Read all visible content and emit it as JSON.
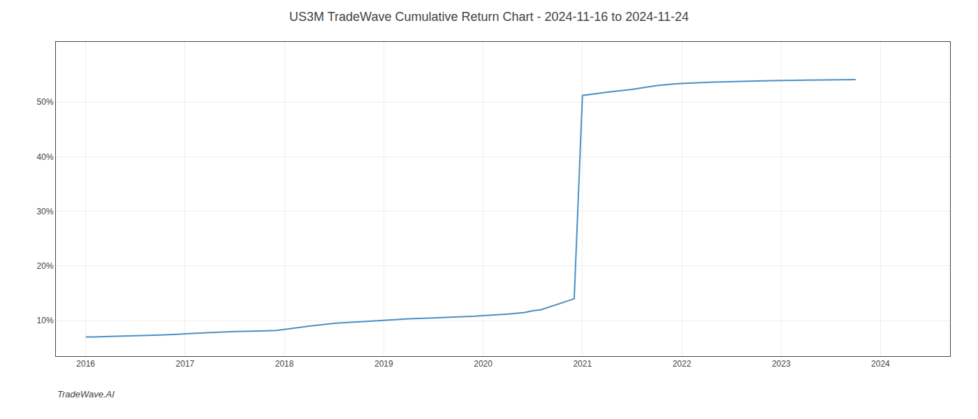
{
  "chart_data": {
    "type": "line",
    "title": "US3M TradeWave Cumulative Return Chart - 2024-11-16 to 2024-11-24",
    "annotations": [
      "TradeWave.AI"
    ],
    "x": [
      2016.0,
      2016.083,
      2016.25,
      2016.5,
      2016.75,
      2016.917,
      2017.0,
      2017.25,
      2017.5,
      2017.75,
      2017.917,
      2018.0,
      2018.25,
      2018.5,
      2018.75,
      2018.917,
      2019.0,
      2019.25,
      2019.5,
      2019.75,
      2019.917,
      2020.0,
      2020.083,
      2020.25,
      2020.417,
      2020.5,
      2020.583,
      2020.667,
      2020.75,
      2020.833,
      2020.917,
      2021.0,
      2021.25,
      2021.5,
      2021.75,
      2021.917,
      2022.0,
      2022.25,
      2022.5,
      2022.75,
      2022.917,
      2023.0,
      2023.25,
      2023.5,
      2023.75
    ],
    "values": [
      7.0,
      7.0,
      7.1,
      7.2,
      7.35,
      7.5,
      7.6,
      7.8,
      8.0,
      8.1,
      8.2,
      8.4,
      9.0,
      9.5,
      9.8,
      10.0,
      10.1,
      10.35,
      10.5,
      10.65,
      10.8,
      10.9,
      11.0,
      11.2,
      11.5,
      11.8,
      12.0,
      12.5,
      13.0,
      13.5,
      14.0,
      51.2,
      51.8,
      52.3,
      53.0,
      53.3,
      53.4,
      53.6,
      53.75,
      53.85,
      53.9,
      53.95,
      54.0,
      54.05,
      54.1
    ],
    "color": "#4a90c4",
    "xlim": [
      2015.7,
      2024.7
    ],
    "xticks": [
      2016,
      2017,
      2018,
      2019,
      2020,
      2021,
      2022,
      2023,
      2024
    ],
    "ylim": [
      3.5,
      61
    ],
    "yticks": [
      {
        "value": 10,
        "label": "10%"
      },
      {
        "value": 20,
        "label": "20%"
      },
      {
        "value": 30,
        "label": "30%"
      },
      {
        "value": 40,
        "label": "40%"
      },
      {
        "value": 50,
        "label": "50%"
      }
    ],
    "grid": true
  }
}
